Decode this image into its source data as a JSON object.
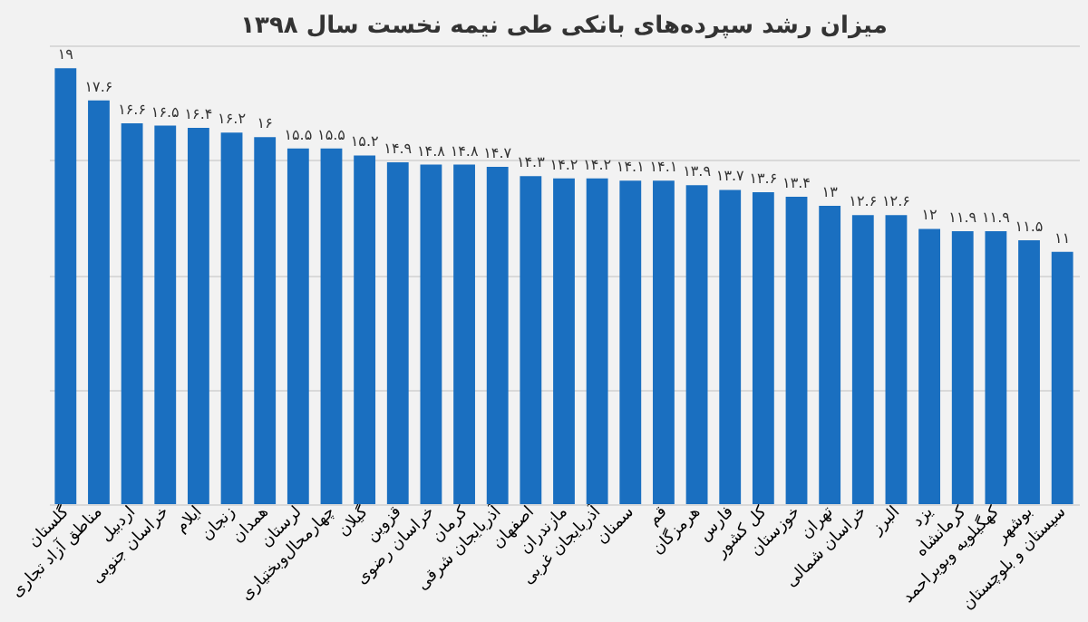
{
  "chart_data": {
    "type": "bar",
    "title": "میزان رشد سپرده‌های بانکی طی نیمه نخست سال ۱۳۹۸",
    "categories": [
      "گلستان",
      "مناطق آزاد تجاری",
      "اردبیل",
      "خراسان جنوبی",
      "ایلام",
      "زنجان",
      "همدان",
      "لرستان",
      "چهارمحال‌وبختیاری",
      "گیلان",
      "قزوین",
      "خراسان رضوی",
      "کرمان",
      "آذربایجان شرقی",
      "اصفهان",
      "مازندران",
      "آذربایجان غربی",
      "سمنان",
      "قم",
      "هرمزگان",
      "فارس",
      "کل کشور",
      "خوزستان",
      "تهران",
      "خراسان شمالی",
      "البرز",
      "یزد",
      "کرمانشاه",
      "کهگیلویه وبویراحمد",
      "بوشهر",
      "سیستان و بلوچستان"
    ],
    "values": [
      19,
      17.6,
      16.6,
      16.5,
      16.4,
      16.2,
      16,
      15.5,
      15.5,
      15.2,
      14.9,
      14.8,
      14.8,
      14.7,
      14.3,
      14.2,
      14.2,
      14.1,
      14.1,
      13.9,
      13.7,
      13.6,
      13.4,
      13,
      12.6,
      12.6,
      12,
      11.9,
      11.9,
      11.5,
      11
    ],
    "value_labels": [
      "۱۹",
      "۱۷.۶",
      "۱۶.۶",
      "۱۶.۵",
      "۱۶.۴",
      "۱۶.۲",
      "۱۶",
      "۱۵.۵",
      "۱۵.۵",
      "۱۵.۲",
      "۱۴.۹",
      "۱۴.۸",
      "۱۴.۸",
      "۱۴.۷",
      "۱۴.۳",
      "۱۴.۲",
      "۱۴.۲",
      "۱۴.۱",
      "۱۴.۱",
      "۱۳.۹",
      "۱۳.۷",
      "۱۳.۶",
      "۱۳.۴",
      "۱۳",
      "۱۲.۶",
      "۱۲.۶",
      "۱۲",
      "۱۱.۹",
      "۱۱.۹",
      "۱۱.۵",
      "۱۱"
    ],
    "color": "#1a6fc0",
    "ylim": [
      0,
      20
    ],
    "yticks": [
      {
        "value": 0,
        "label": null
      },
      {
        "value": 5,
        "label": null
      },
      {
        "value": 10,
        "label": null
      },
      {
        "value": 15,
        "label": null
      },
      {
        "value": 20,
        "label": null
      }
    ],
    "grid": "y",
    "tick_labels": "x"
  }
}
